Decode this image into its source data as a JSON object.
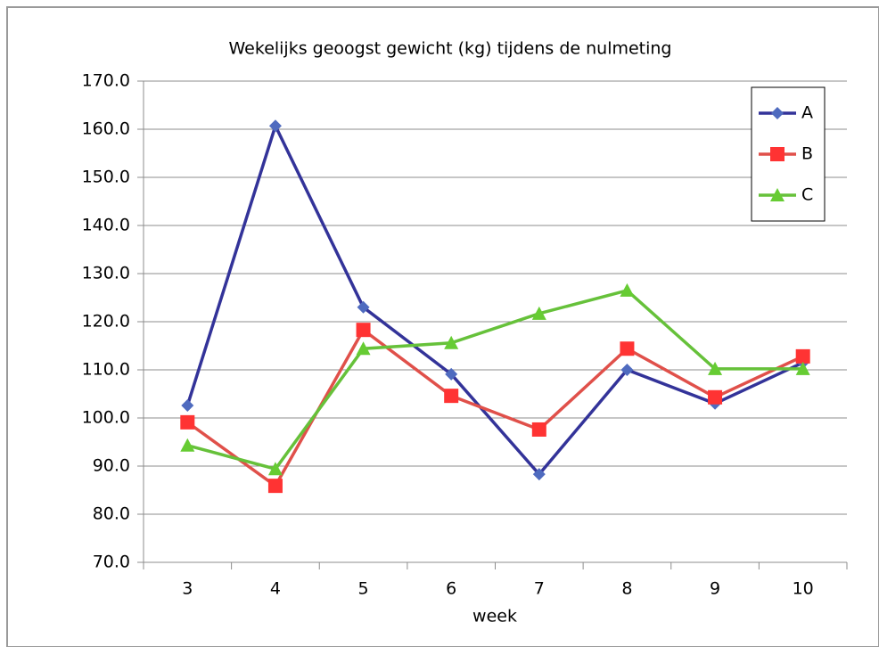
{
  "chart_data": {
    "type": "line",
    "title": "Wekelijks geoogst gewicht (kg) tijdens de nulmeting",
    "x_label": "week",
    "categories": [
      "3",
      "4",
      "5",
      "6",
      "7",
      "8",
      "9",
      "10"
    ],
    "series": [
      {
        "name": "A",
        "color": "#333399",
        "marker_color": "#4f6bbf",
        "marker": "diamond",
        "values": [
          102.6,
          160.7,
          123.0,
          109.1,
          88.3,
          110.0,
          103.0,
          111.5
        ]
      },
      {
        "name": "B",
        "color": "#e0504a",
        "marker_color": "#ff3333",
        "marker": "square",
        "values": [
          99.1,
          85.9,
          118.3,
          104.6,
          97.6,
          114.4,
          104.3,
          112.8
        ]
      },
      {
        "name": "C",
        "color": "#66c13a",
        "marker_color": "#66cc33",
        "marker": "triangle",
        "values": [
          94.3,
          89.4,
          114.4,
          115.6,
          121.7,
          126.5,
          110.2,
          110.2
        ]
      }
    ],
    "ylim": [
      70,
      170
    ],
    "yticks": [
      {
        "value": 70,
        "label": "70.0"
      },
      {
        "value": 80,
        "label": "80.0"
      },
      {
        "value": 90,
        "label": "90.0"
      },
      {
        "value": 100,
        "label": "100.0"
      },
      {
        "value": 110,
        "label": "110.0"
      },
      {
        "value": 120,
        "label": "120.0"
      },
      {
        "value": 130,
        "label": "130.0"
      },
      {
        "value": 140,
        "label": "140.0"
      },
      {
        "value": 150,
        "label": "150.0"
      },
      {
        "value": 160,
        "label": "160.0"
      },
      {
        "value": 170,
        "label": "170.0"
      }
    ],
    "grid": true,
    "legend": "top-right"
  }
}
